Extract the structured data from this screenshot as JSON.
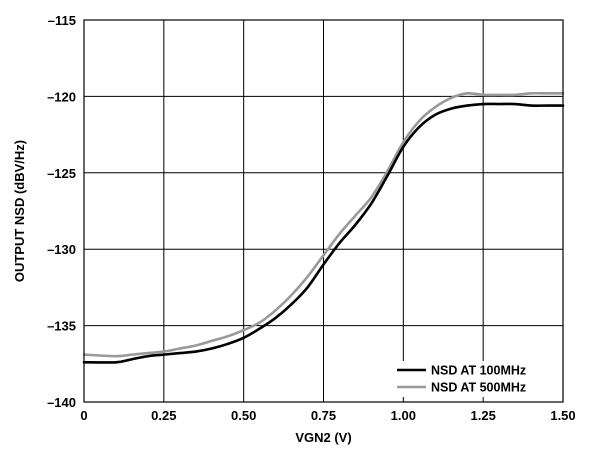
{
  "chart_data": {
    "type": "line",
    "xlabel": "VGN2 (V)",
    "ylabel": "OUTPUT NSD (dBV/Hz)",
    "xlim": [
      0,
      1.5
    ],
    "ylim": [
      -140,
      -115
    ],
    "xticks": [
      0,
      0.25,
      0.5,
      0.75,
      1.0,
      1.25,
      1.5
    ],
    "xtick_labels": [
      "0",
      "0.25",
      "0.50",
      "0.75",
      "1.00",
      "1.25",
      "1.50"
    ],
    "yticks": [
      -115,
      -120,
      -125,
      -130,
      -135,
      -140
    ],
    "ytick_labels": [
      "–115",
      "–120",
      "–125",
      "–130",
      "–135",
      "–140"
    ],
    "grid": true,
    "legend_position": "bottom-right",
    "series": [
      {
        "name": "NSD AT 100MHz",
        "color": "#000000",
        "x": [
          0,
          0.1,
          0.15,
          0.2,
          0.25,
          0.3,
          0.35,
          0.4,
          0.45,
          0.5,
          0.55,
          0.6,
          0.65,
          0.7,
          0.75,
          0.8,
          0.85,
          0.9,
          0.95,
          1.0,
          1.05,
          1.1,
          1.15,
          1.2,
          1.25,
          1.3,
          1.35,
          1.4,
          1.45,
          1.5
        ],
        "y": [
          -137.4,
          -137.4,
          -137.2,
          -137.0,
          -136.9,
          -136.8,
          -136.7,
          -136.5,
          -136.2,
          -135.8,
          -135.2,
          -134.5,
          -133.6,
          -132.5,
          -131.0,
          -129.6,
          -128.4,
          -127.0,
          -125.2,
          -123.3,
          -122.0,
          -121.2,
          -120.8,
          -120.6,
          -120.5,
          -120.5,
          -120.5,
          -120.6,
          -120.6,
          -120.6
        ]
      },
      {
        "name": "NSD AT 500MHz",
        "color": "#999999",
        "x": [
          0,
          0.1,
          0.15,
          0.2,
          0.25,
          0.3,
          0.35,
          0.4,
          0.45,
          0.5,
          0.55,
          0.6,
          0.65,
          0.7,
          0.75,
          0.8,
          0.85,
          0.9,
          0.95,
          1.0,
          1.05,
          1.1,
          1.15,
          1.2,
          1.25,
          1.3,
          1.35,
          1.4,
          1.45,
          1.5
        ],
        "y": [
          -136.9,
          -137.0,
          -136.9,
          -136.8,
          -136.7,
          -136.5,
          -136.3,
          -136.0,
          -135.7,
          -135.3,
          -134.8,
          -134.0,
          -133.0,
          -131.8,
          -130.4,
          -129.0,
          -127.8,
          -126.6,
          -124.9,
          -123.0,
          -121.6,
          -120.7,
          -120.1,
          -119.8,
          -119.9,
          -119.9,
          -119.9,
          -119.8,
          -119.8,
          -119.8
        ]
      }
    ]
  }
}
